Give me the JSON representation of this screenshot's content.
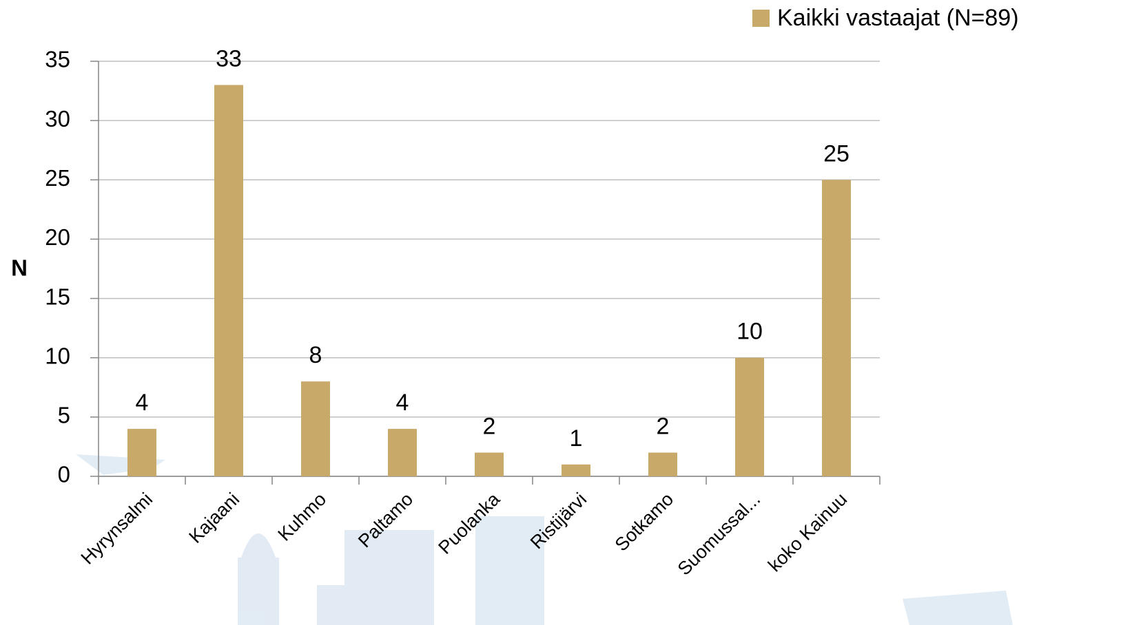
{
  "chart_data": {
    "type": "bar",
    "y_label": "N",
    "categories": [
      "Hyrynsalmi",
      "Kajaani",
      "Kuhmo",
      "Paltamo",
      "Puolanka",
      "Ristijärvi",
      "Sotkamo",
      "Suomussal...",
      "koko Kainuu"
    ],
    "series": [
      {
        "name": "Kaikki vastaajat (N=89)",
        "color": "#c9a96a",
        "values": [
          4,
          33,
          8,
          4,
          2,
          1,
          2,
          10,
          25
        ]
      }
    ],
    "ylim": [
      0,
      35
    ],
    "yticks": [
      0,
      5,
      10,
      15,
      20,
      25,
      30,
      35
    ],
    "grid": true,
    "legend": "top-right"
  }
}
